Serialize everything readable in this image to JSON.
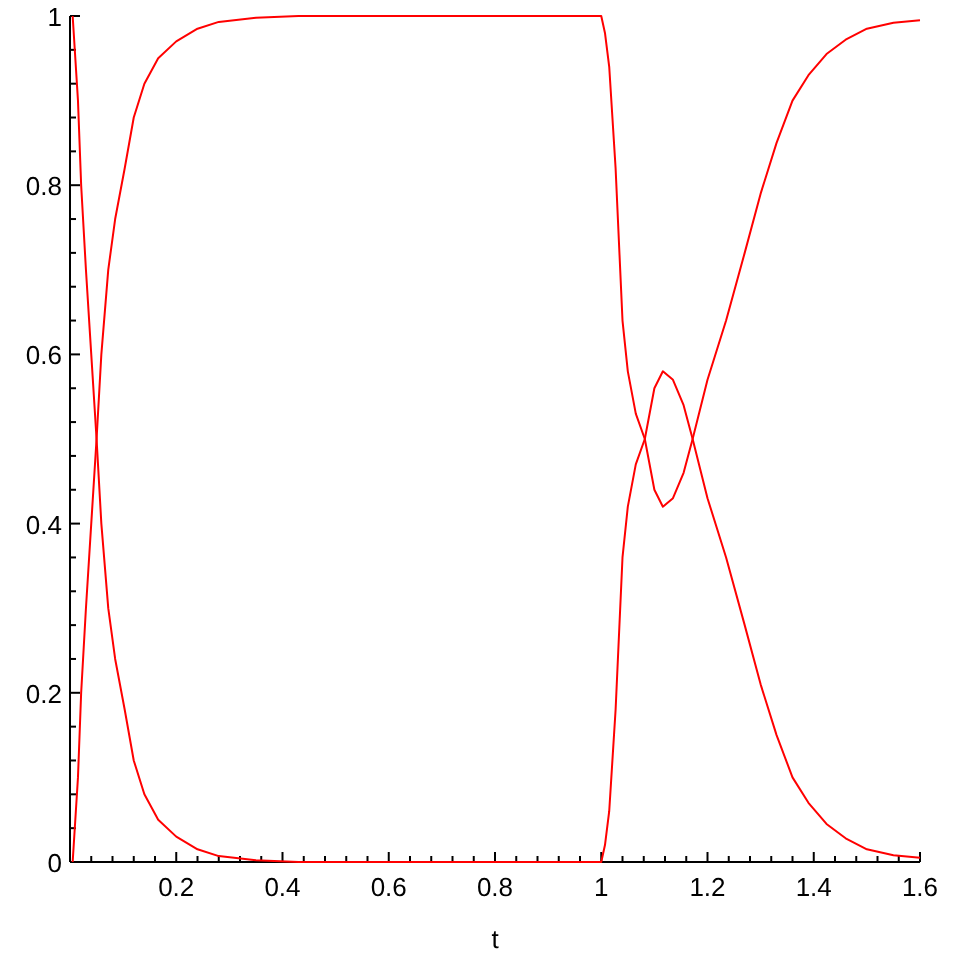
{
  "chart_data": {
    "type": "line",
    "xlabel": "t",
    "xlim": [
      0,
      1.6
    ],
    "ylim": [
      0,
      1
    ],
    "xticks": [
      {
        "value": 0.04,
        "label": null
      },
      {
        "value": 0.08,
        "label": null
      },
      {
        "value": 0.12,
        "label": null
      },
      {
        "value": 0.16,
        "label": null
      },
      0.2,
      {
        "value": 0.24,
        "label": null
      },
      {
        "value": 0.28,
        "label": null
      },
      {
        "value": 0.32,
        "label": null
      },
      {
        "value": 0.36,
        "label": null
      },
      0.4,
      {
        "value": 0.44,
        "label": null
      },
      {
        "value": 0.48,
        "label": null
      },
      {
        "value": 0.52,
        "label": null
      },
      {
        "value": 0.56,
        "label": null
      },
      0.6,
      {
        "value": 0.64,
        "label": null
      },
      {
        "value": 0.68,
        "label": null
      },
      {
        "value": 0.72,
        "label": null
      },
      {
        "value": 0.76,
        "label": null
      },
      0.8,
      {
        "value": 0.84,
        "label": null
      },
      {
        "value": 0.88,
        "label": null
      },
      {
        "value": 0.92,
        "label": null
      },
      {
        "value": 0.96,
        "label": null
      },
      1,
      {
        "value": 1.04,
        "label": null
      },
      {
        "value": 1.08,
        "label": null
      },
      {
        "value": 1.12,
        "label": null
      },
      {
        "value": 1.16,
        "label": null
      },
      1.2,
      {
        "value": 1.24,
        "label": null
      },
      {
        "value": 1.28,
        "label": null
      },
      {
        "value": 1.32,
        "label": null
      },
      {
        "value": 1.36,
        "label": null
      },
      1.4,
      {
        "value": 1.44,
        "label": null
      },
      {
        "value": 1.48,
        "label": null
      },
      {
        "value": 1.52,
        "label": null
      },
      {
        "value": 1.56,
        "label": null
      },
      1.6
    ],
    "yticks": [
      0,
      {
        "value": 0.04,
        "label": null
      },
      {
        "value": 0.08,
        "label": null
      },
      {
        "value": 0.12,
        "label": null
      },
      {
        "value": 0.16,
        "label": null
      },
      0.2,
      {
        "value": 0.24,
        "label": null
      },
      {
        "value": 0.28,
        "label": null
      },
      {
        "value": 0.32,
        "label": null
      },
      {
        "value": 0.36,
        "label": null
      },
      0.4,
      {
        "value": 0.44,
        "label": null
      },
      {
        "value": 0.48,
        "label": null
      },
      {
        "value": 0.52,
        "label": null
      },
      {
        "value": 0.56,
        "label": null
      },
      0.6,
      {
        "value": 0.64,
        "label": null
      },
      {
        "value": 0.68,
        "label": null
      },
      {
        "value": 0.72,
        "label": null
      },
      {
        "value": 0.76,
        "label": null
      },
      0.8,
      {
        "value": 0.84,
        "label": null
      },
      {
        "value": 0.88,
        "label": null
      },
      {
        "value": 0.92,
        "label": null
      },
      {
        "value": 0.96,
        "label": null
      },
      1
    ],
    "x": [
      0.005,
      0.01,
      0.015,
      0.021,
      0.03,
      0.04,
      0.05,
      0.059,
      0.072,
      0.085,
      0.103,
      0.12,
      0.14,
      0.166,
      0.2,
      0.24,
      0.28,
      0.35,
      0.43,
      1.0,
      1.007,
      1.015,
      1.027,
      1.04,
      1.05,
      1.065,
      1.082,
      1.1,
      1.116,
      1.135,
      1.155,
      1.172,
      1.2,
      1.235,
      1.27,
      1.3,
      1.33,
      1.36,
      1.39,
      1.424,
      1.46,
      1.5,
      1.55,
      1.6
    ],
    "grid": false,
    "series": [
      {
        "color": "#ff0000",
        "values": [
          0,
          0.05,
          0.1,
          0.2,
          0.3,
          0.4,
          0.5,
          0.6,
          0.7,
          0.76,
          0.82,
          0.88,
          0.92,
          0.95,
          0.97,
          0.985,
          0.993,
          0.998,
          1,
          1,
          0.98,
          0.94,
          0.82,
          0.64,
          0.58,
          0.53,
          0.5,
          0.44,
          0.42,
          0.43,
          0.46,
          0.5,
          0.57,
          0.64,
          0.72,
          0.79,
          0.85,
          0.9,
          0.93,
          0.955,
          0.972,
          0.985,
          0.992,
          0.995
        ]
      },
      {
        "color": "#ff0000",
        "values": [
          1,
          0.95,
          0.9,
          0.8,
          0.7,
          0.6,
          0.5,
          0.4,
          0.3,
          0.24,
          0.18,
          0.12,
          0.08,
          0.05,
          0.03,
          0.015,
          0.007,
          0.002,
          0,
          0,
          0.02,
          0.06,
          0.18,
          0.36,
          0.42,
          0.47,
          0.5,
          0.56,
          0.58,
          0.57,
          0.54,
          0.5,
          0.43,
          0.36,
          0.28,
          0.21,
          0.15,
          0.1,
          0.07,
          0.045,
          0.028,
          0.015,
          0.008,
          0.005
        ]
      }
    ]
  }
}
